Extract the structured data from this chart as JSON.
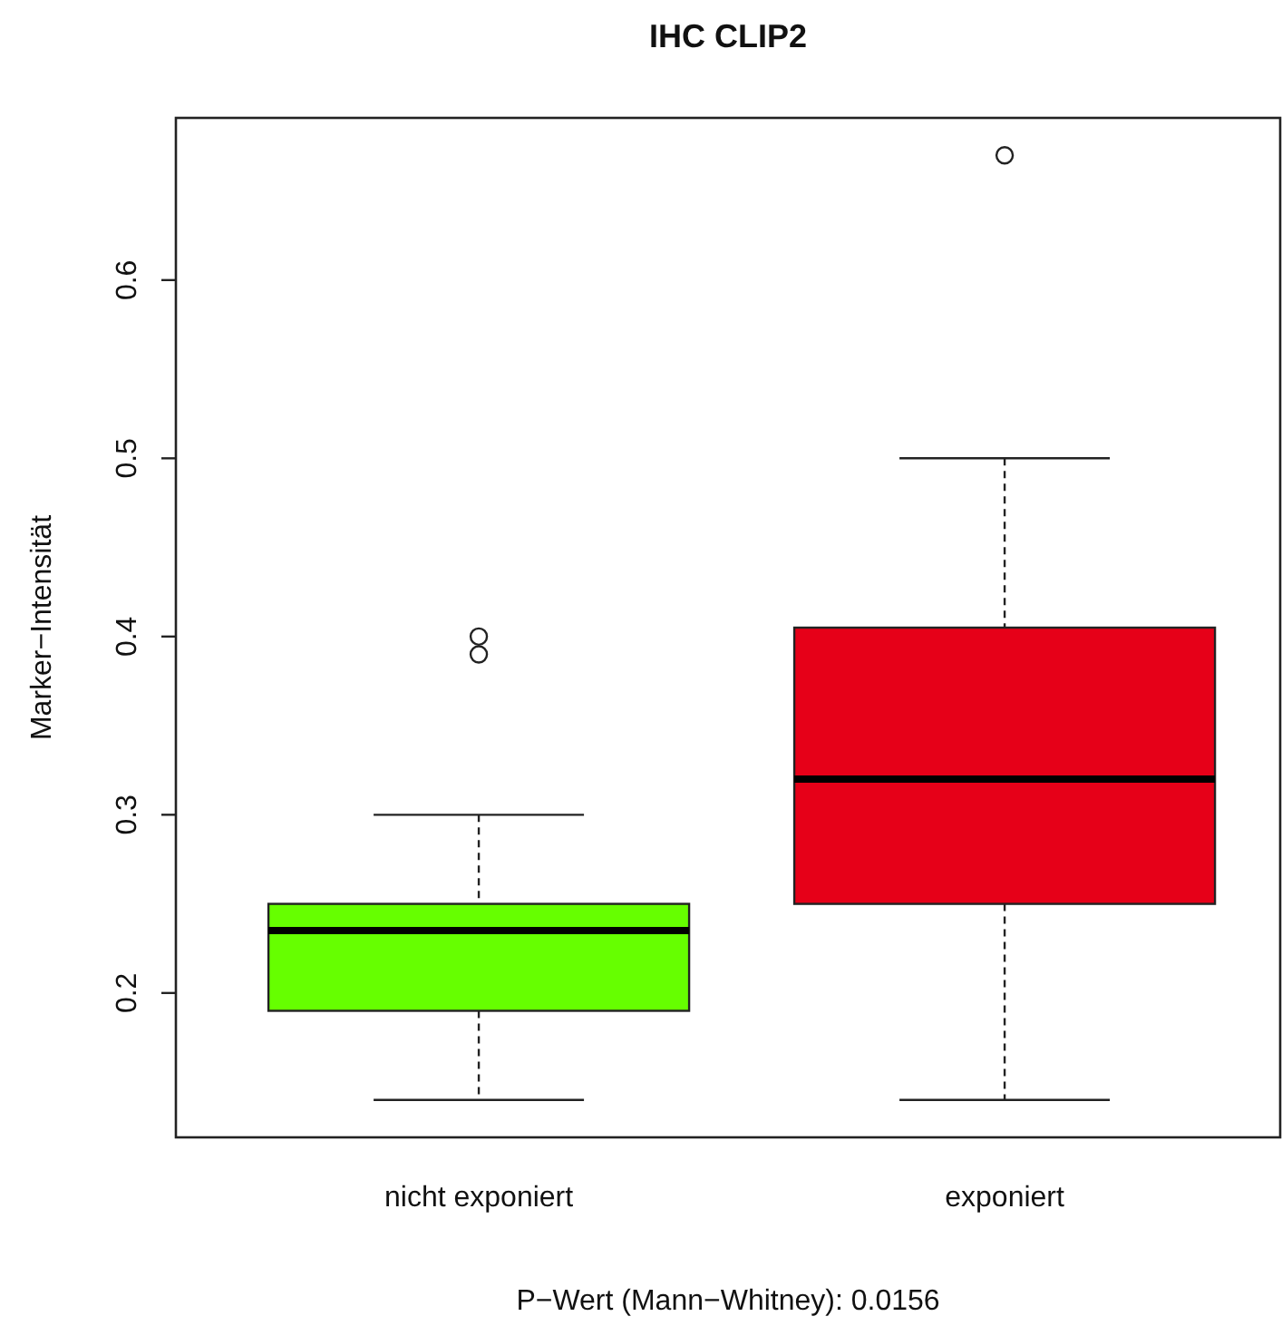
{
  "chart_data": {
    "type": "box",
    "title": "IHC CLIP2",
    "xlabel": "P−Wert (Mann−Whitney): 0.0156",
    "ylabel": "Marker−Intensität",
    "categories": [
      "nicht exponiert",
      "exponiert"
    ],
    "colors": [
      "#66ff00",
      "#e60018"
    ],
    "boxes": [
      {
        "low": 0.14,
        "q1": 0.19,
        "median": 0.235,
        "q3": 0.25,
        "high": 0.3,
        "outliers": [
          0.39,
          0.4
        ]
      },
      {
        "low": 0.14,
        "q1": 0.25,
        "median": 0.32,
        "q3": 0.405,
        "high": 0.5,
        "outliers": [
          0.67
        ]
      }
    ],
    "ylim": [
      0.119,
      0.691
    ],
    "yticks": [
      0.2,
      0.3,
      0.4,
      0.5,
      0.6
    ]
  }
}
